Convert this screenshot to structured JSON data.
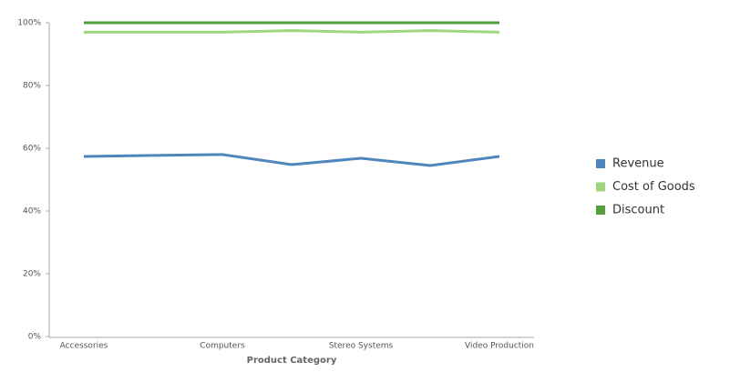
{
  "chart_data": {
    "type": "stacked_line",
    "x_label": "Product Category",
    "categories": [
      "Accessories",
      null,
      "Computers",
      null,
      "Stereo Systems",
      null,
      "Video Production"
    ],
    "series": [
      {
        "name": "Revenue",
        "color": "#4f86bd",
        "values": [
          57.4,
          57.7,
          58.0,
          54.8,
          56.8,
          54.5,
          57.4
        ]
      },
      {
        "name": "Cost of Goods",
        "color": "#9fd67c",
        "values": [
          39.6,
          39.3,
          39.0,
          42.7,
          40.2,
          43.0,
          39.6
        ]
      },
      {
        "name": "Discount",
        "color": "#52a03c",
        "values": [
          3.0,
          3.0,
          3.0,
          2.5,
          3.0,
          2.5,
          3.0
        ]
      }
    ],
    "ylim": [
      0,
      100
    ],
    "yticks": [
      {
        "value": 0,
        "label": "0%"
      },
      {
        "value": 20,
        "label": "20%"
      },
      {
        "value": 40,
        "label": "40%"
      },
      {
        "value": 60,
        "label": "60%"
      },
      {
        "value": 80,
        "label": "80%"
      },
      {
        "value": 100,
        "label": "100%"
      }
    ],
    "legend": "right"
  }
}
